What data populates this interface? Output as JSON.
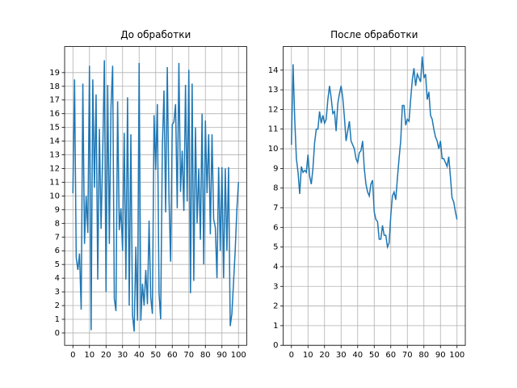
{
  "chart_data": [
    {
      "type": "line",
      "title": "До обработки",
      "color": "#1f77b4",
      "grid": true,
      "x": [
        0,
        1,
        2,
        3,
        4,
        5,
        6,
        7,
        8,
        9,
        10,
        11,
        12,
        13,
        14,
        15,
        16,
        17,
        18,
        19,
        20,
        21,
        22,
        23,
        24,
        25,
        26,
        27,
        28,
        29,
        30,
        31,
        32,
        33,
        34,
        35,
        36,
        37,
        38,
        39,
        40,
        41,
        42,
        43,
        44,
        45,
        46,
        47,
        48,
        49,
        50,
        51,
        52,
        53,
        54,
        55,
        56,
        57,
        58,
        59,
        60,
        61,
        62,
        63,
        64,
        65,
        66,
        67,
        68,
        69,
        70,
        71,
        72,
        73,
        74,
        75,
        76,
        77,
        78,
        79,
        80,
        81,
        82,
        83,
        84,
        85,
        86,
        87,
        88,
        89,
        90,
        91,
        92,
        93,
        94,
        95,
        96,
        97,
        98,
        99,
        100
      ],
      "values": [
        10.2,
        18.5,
        5.5,
        4.6,
        5.8,
        1.7,
        18.2,
        6.5,
        10,
        7.3,
        19.5,
        0.2,
        18.5,
        10.6,
        17.4,
        3.9,
        14.9,
        7.6,
        13.1,
        19.9,
        3,
        18.1,
        6.5,
        16.5,
        19.5,
        2.5,
        1.6,
        16.9,
        7.5,
        9.1,
        6,
        14.6,
        3.9,
        17.2,
        2,
        14.5,
        1.3,
        0.1,
        6.3,
        0.9,
        19.7,
        0.9,
        3.6,
        2,
        4.6,
        2.1,
        8.2,
        2.6,
        1.4,
        15.9,
        11.9,
        16.7,
        2.9,
        1,
        13.5,
        17.7,
        8.8,
        19.4,
        10,
        5.2,
        15.2,
        15.4,
        16.7,
        9.1,
        19.7,
        10.3,
        13.3,
        8.9,
        18.1,
        9.6,
        19.2,
        2.9,
        18.2,
        3.8,
        15,
        8,
        12,
        6.8,
        16,
        5,
        15.5,
        10.2,
        14.5,
        7.2,
        14.5,
        8.3,
        7.7,
        4,
        12.1,
        6,
        12.1,
        4,
        12,
        6,
        12.1,
        0.5,
        1.4,
        3.7,
        6,
        9,
        11
      ],
      "xlim": [
        -5,
        105
      ],
      "xticks": [
        0,
        10,
        20,
        30,
        40,
        50,
        60,
        70,
        80,
        90,
        100
      ],
      "ylim": [
        -0.9,
        20.9
      ],
      "yticks": [
        0,
        1,
        2,
        3,
        4,
        5,
        6,
        7,
        8,
        9,
        10,
        11,
        12,
        13,
        14,
        15,
        16,
        17,
        18,
        19
      ]
    },
    {
      "type": "line",
      "title": "После обработки",
      "color": "#1f77b4",
      "grid": true,
      "x": [
        0,
        1,
        2,
        3,
        4,
        5,
        6,
        7,
        8,
        9,
        10,
        11,
        12,
        13,
        14,
        15,
        16,
        17,
        18,
        19,
        20,
        21,
        22,
        23,
        24,
        25,
        26,
        27,
        28,
        29,
        30,
        31,
        32,
        33,
        34,
        35,
        36,
        37,
        38,
        39,
        40,
        41,
        42,
        43,
        44,
        45,
        46,
        47,
        48,
        49,
        50,
        51,
        52,
        53,
        54,
        55,
        56,
        57,
        58,
        59,
        60,
        61,
        62,
        63,
        64,
        65,
        66,
        67,
        68,
        69,
        70,
        71,
        72,
        73,
        74,
        75,
        76,
        77,
        78,
        79,
        80,
        81,
        82,
        83,
        84,
        85,
        86,
        87,
        88,
        89,
        90,
        91,
        92,
        93,
        94,
        95,
        96,
        97,
        98,
        99,
        100
      ],
      "values": [
        10.2,
        14.3,
        11.5,
        9.5,
        8.8,
        7.7,
        9.1,
        8.8,
        8.9,
        8.8,
        9.7,
        8.6,
        8.2,
        9,
        10.3,
        11,
        11,
        11.9,
        11.3,
        11.7,
        11.3,
        11.5,
        12.5,
        13.2,
        12.6,
        11.8,
        11.9,
        10.9,
        12.3,
        12.8,
        13.2,
        12.6,
        11.6,
        10.4,
        10.9,
        11.4,
        10.4,
        10.2,
        10,
        9.5,
        9.3,
        9.8,
        9.9,
        10.4,
        9,
        8.2,
        7.8,
        7.6,
        8.2,
        8.4,
        6.8,
        6.4,
        6.3,
        5.4,
        5.4,
        6.1,
        5.6,
        5.6,
        5,
        5.2,
        6.6,
        7.6,
        7.8,
        7.4,
        8.5,
        9.5,
        10.4,
        12.2,
        12.2,
        11.2,
        11.5,
        11.4,
        12.5,
        13.5,
        14.1,
        13.2,
        13.8,
        13.6,
        13.4,
        14.7,
        13.6,
        13.8,
        12.5,
        12.9,
        11.7,
        11.5,
        11,
        10.6,
        10.4,
        10,
        10.4,
        9.5,
        9.5,
        9.3,
        9.1,
        9.6,
        8.6,
        7.5,
        7.3,
        6.8,
        6.4
      ],
      "xlim": [
        -5,
        105
      ],
      "xticks": [
        0,
        10,
        20,
        30,
        40,
        50,
        60,
        70,
        80,
        90,
        100
      ],
      "ylim": [
        0,
        15.2
      ],
      "yticks": [
        0,
        1,
        2,
        3,
        4,
        5,
        6,
        7,
        8,
        9,
        10,
        11,
        12,
        13,
        14
      ]
    }
  ]
}
